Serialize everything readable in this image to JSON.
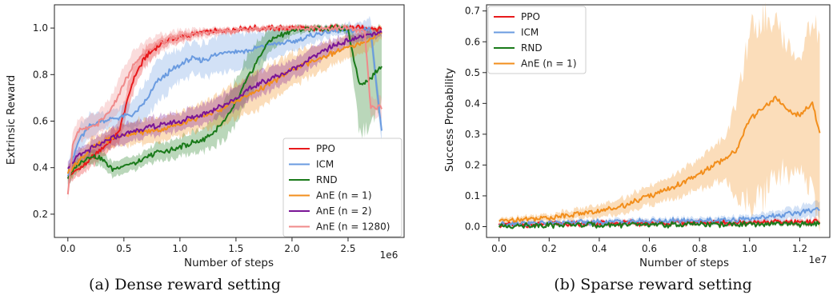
{
  "chart_data": [
    {
      "type": "line",
      "caption": "(a) Dense reward setting",
      "xlabel": "Number of steps",
      "ylabel": "Extrinsic Reward",
      "x_multiplier": "1e6",
      "xlim": [
        -0.12,
        3.0
      ],
      "ylim": [
        0.1,
        1.1
      ],
      "xticks": [
        0.0,
        0.5,
        1.0,
        1.5,
        2.0,
        2.5
      ],
      "xtick_labels": [
        "0.0",
        "0.5",
        "1.0",
        "1.5",
        "2.0",
        "2.5"
      ],
      "yticks": [
        0.2,
        0.4,
        0.6,
        0.8,
        1.0
      ],
      "ytick_labels": [
        "0.2",
        "0.4",
        "0.6",
        "0.8",
        "1.0"
      ],
      "grid": false,
      "legend_position": "lower-right",
      "series": [
        {
          "name": "PPO",
          "color": "#e8191c",
          "x": [
            0.0,
            0.05,
            0.15,
            0.25,
            0.35,
            0.45,
            0.55,
            0.6,
            0.7,
            0.8,
            0.9,
            1.0,
            1.2,
            1.4,
            1.6,
            1.8,
            2.0,
            2.2,
            2.5,
            2.8
          ],
          "y": [
            0.36,
            0.38,
            0.41,
            0.46,
            0.5,
            0.55,
            0.72,
            0.8,
            0.88,
            0.92,
            0.95,
            0.96,
            0.98,
            0.99,
            1.0,
            1.0,
            1.0,
            1.0,
            1.0,
            1.0
          ],
          "band": [
            0.03,
            0.03,
            0.03,
            0.04,
            0.04,
            0.05,
            0.06,
            0.05,
            0.04,
            0.03,
            0.02,
            0.02,
            0.01,
            0.01,
            0.01,
            0.01,
            0.01,
            0.01,
            0.01,
            0.01
          ]
        },
        {
          "name": "ICM",
          "color": "#6a9be0",
          "x": [
            0.0,
            0.1,
            0.2,
            0.3,
            0.4,
            0.5,
            0.6,
            0.7,
            0.8,
            0.9,
            1.0,
            1.1,
            1.2,
            1.4,
            1.6,
            1.8,
            2.0,
            2.2,
            2.4,
            2.6,
            2.7,
            2.8
          ],
          "y": [
            0.37,
            0.52,
            0.58,
            0.6,
            0.61,
            0.62,
            0.63,
            0.69,
            0.77,
            0.81,
            0.84,
            0.87,
            0.86,
            0.9,
            0.9,
            0.93,
            0.94,
            0.97,
            0.99,
            0.99,
            1.0,
            0.55
          ],
          "band": [
            0.05,
            0.06,
            0.05,
            0.04,
            0.04,
            0.05,
            0.06,
            0.08,
            0.09,
            0.08,
            0.07,
            0.07,
            0.07,
            0.08,
            0.08,
            0.06,
            0.04,
            0.03,
            0.02,
            0.03,
            0.05,
            0.05
          ]
        },
        {
          "name": "RND",
          "color": "#1a7a1a",
          "x": [
            0.0,
            0.1,
            0.2,
            0.3,
            0.4,
            0.5,
            0.6,
            0.7,
            0.8,
            0.9,
            1.0,
            1.2,
            1.3,
            1.4,
            1.5,
            1.6,
            1.7,
            1.8,
            2.0,
            2.2,
            2.4,
            2.5,
            2.6,
            2.7,
            2.8
          ],
          "y": [
            0.36,
            0.42,
            0.45,
            0.44,
            0.39,
            0.41,
            0.42,
            0.44,
            0.47,
            0.47,
            0.49,
            0.52,
            0.55,
            0.6,
            0.68,
            0.78,
            0.87,
            0.95,
            0.99,
            1.0,
            1.0,
            0.99,
            0.76,
            0.78,
            0.84
          ],
          "band": [
            0.03,
            0.03,
            0.03,
            0.03,
            0.03,
            0.03,
            0.03,
            0.03,
            0.04,
            0.04,
            0.04,
            0.05,
            0.06,
            0.08,
            0.1,
            0.1,
            0.08,
            0.05,
            0.02,
            0.01,
            0.01,
            0.02,
            0.2,
            0.2,
            0.15
          ]
        },
        {
          "name": "AnE (n = 1)",
          "color": "#f28e1c",
          "x": [
            0.0,
            0.2,
            0.4,
            0.6,
            0.8,
            1.0,
            1.2,
            1.4,
            1.6,
            1.8,
            2.0,
            2.2,
            2.4,
            2.6,
            2.7,
            2.8
          ],
          "y": [
            0.38,
            0.48,
            0.53,
            0.55,
            0.56,
            0.59,
            0.62,
            0.66,
            0.71,
            0.76,
            0.82,
            0.86,
            0.9,
            0.93,
            0.95,
            0.98
          ],
          "band": [
            0.03,
            0.04,
            0.04,
            0.05,
            0.05,
            0.05,
            0.06,
            0.07,
            0.08,
            0.08,
            0.07,
            0.06,
            0.05,
            0.05,
            0.04,
            0.03
          ]
        },
        {
          "name": "AnE (n = 2)",
          "color": "#7a1596",
          "x": [
            0.0,
            0.1,
            0.2,
            0.3,
            0.4,
            0.5,
            0.6,
            0.8,
            1.0,
            1.2,
            1.4,
            1.5,
            1.6,
            1.7,
            1.8,
            2.0,
            2.2,
            2.4,
            2.6,
            2.8
          ],
          "y": [
            0.4,
            0.45,
            0.48,
            0.5,
            0.53,
            0.54,
            0.56,
            0.58,
            0.6,
            0.63,
            0.67,
            0.7,
            0.73,
            0.76,
            0.78,
            0.82,
            0.88,
            0.93,
            0.96,
            0.98
          ],
          "band": [
            0.03,
            0.03,
            0.03,
            0.04,
            0.04,
            0.04,
            0.04,
            0.04,
            0.04,
            0.04,
            0.05,
            0.05,
            0.05,
            0.05,
            0.05,
            0.04,
            0.04,
            0.03,
            0.02,
            0.02
          ]
        },
        {
          "name": "AnE (n = 1280)",
          "color": "#f08a8a",
          "x": [
            0.0,
            0.05,
            0.1,
            0.2,
            0.3,
            0.4,
            0.5,
            0.6,
            0.7,
            0.8,
            0.9,
            1.0,
            1.2,
            1.5,
            1.8,
            2.0,
            2.5,
            2.65,
            2.7,
            2.8
          ],
          "y": [
            0.28,
            0.52,
            0.56,
            0.57,
            0.6,
            0.66,
            0.76,
            0.85,
            0.9,
            0.93,
            0.95,
            0.96,
            0.98,
            0.99,
            1.0,
            1.0,
            1.0,
            0.98,
            0.66,
            0.66
          ],
          "band": [
            0.03,
            0.05,
            0.05,
            0.05,
            0.05,
            0.06,
            0.07,
            0.06,
            0.05,
            0.04,
            0.03,
            0.03,
            0.02,
            0.01,
            0.01,
            0.01,
            0.01,
            0.03,
            0.04,
            0.04
          ]
        }
      ]
    },
    {
      "type": "line",
      "caption": "(b) Sparse reward setting",
      "xlabel": "Number of steps",
      "ylabel": "Success Probability",
      "x_multiplier": "1e7",
      "xlim": [
        -0.05,
        1.32
      ],
      "ylim": [
        -0.035,
        0.72
      ],
      "xticks": [
        0.0,
        0.2,
        0.4,
        0.6,
        0.8,
        1.0,
        1.2
      ],
      "xtick_labels": [
        "0.0",
        "0.2",
        "0.4",
        "0.6",
        "0.8",
        "1.0",
        "1.2"
      ],
      "yticks": [
        0.0,
        0.1,
        0.2,
        0.3,
        0.4,
        0.5,
        0.6,
        0.7
      ],
      "ytick_labels": [
        "0.0",
        "0.1",
        "0.2",
        "0.3",
        "0.4",
        "0.5",
        "0.6",
        "0.7"
      ],
      "grid": false,
      "legend_position": "upper-left",
      "series": [
        {
          "name": "PPO",
          "color": "#e8191c",
          "x": [
            0.0,
            0.2,
            0.4,
            0.6,
            0.8,
            1.0,
            1.2,
            1.28
          ],
          "y": [
            0.005,
            0.008,
            0.01,
            0.012,
            0.012,
            0.013,
            0.015,
            0.015
          ],
          "band": [
            0.005,
            0.006,
            0.006,
            0.007,
            0.007,
            0.007,
            0.008,
            0.008
          ]
        },
        {
          "name": "ICM",
          "color": "#6a9be0",
          "x": [
            0.0,
            0.2,
            0.4,
            0.6,
            0.8,
            1.0,
            1.1,
            1.2,
            1.28
          ],
          "y": [
            0.01,
            0.012,
            0.015,
            0.018,
            0.02,
            0.025,
            0.035,
            0.045,
            0.06
          ],
          "band": [
            0.006,
            0.007,
            0.008,
            0.009,
            0.01,
            0.012,
            0.015,
            0.02,
            0.025
          ]
        },
        {
          "name": "RND",
          "color": "#1a7a1a",
          "x": [
            0.0,
            0.2,
            0.4,
            0.6,
            0.8,
            1.0,
            1.2,
            1.28
          ],
          "y": [
            0.004,
            0.005,
            0.006,
            0.006,
            0.007,
            0.008,
            0.009,
            0.01
          ],
          "band": [
            0.004,
            0.004,
            0.005,
            0.005,
            0.005,
            0.005,
            0.006,
            0.006
          ]
        },
        {
          "name": "AnE (n = 1)",
          "color": "#f28e1c",
          "x": [
            0.0,
            0.1,
            0.2,
            0.3,
            0.4,
            0.5,
            0.6,
            0.7,
            0.8,
            0.9,
            0.95,
            1.0,
            1.05,
            1.1,
            1.15,
            1.2,
            1.25,
            1.28
          ],
          "y": [
            0.02,
            0.025,
            0.03,
            0.04,
            0.05,
            0.07,
            0.1,
            0.13,
            0.17,
            0.22,
            0.25,
            0.35,
            0.38,
            0.42,
            0.38,
            0.36,
            0.4,
            0.31
          ],
          "band": [
            0.008,
            0.01,
            0.012,
            0.015,
            0.02,
            0.025,
            0.03,
            0.04,
            0.05,
            0.07,
            0.15,
            0.28,
            0.3,
            0.25,
            0.2,
            0.2,
            0.28,
            0.3
          ]
        }
      ]
    }
  ]
}
